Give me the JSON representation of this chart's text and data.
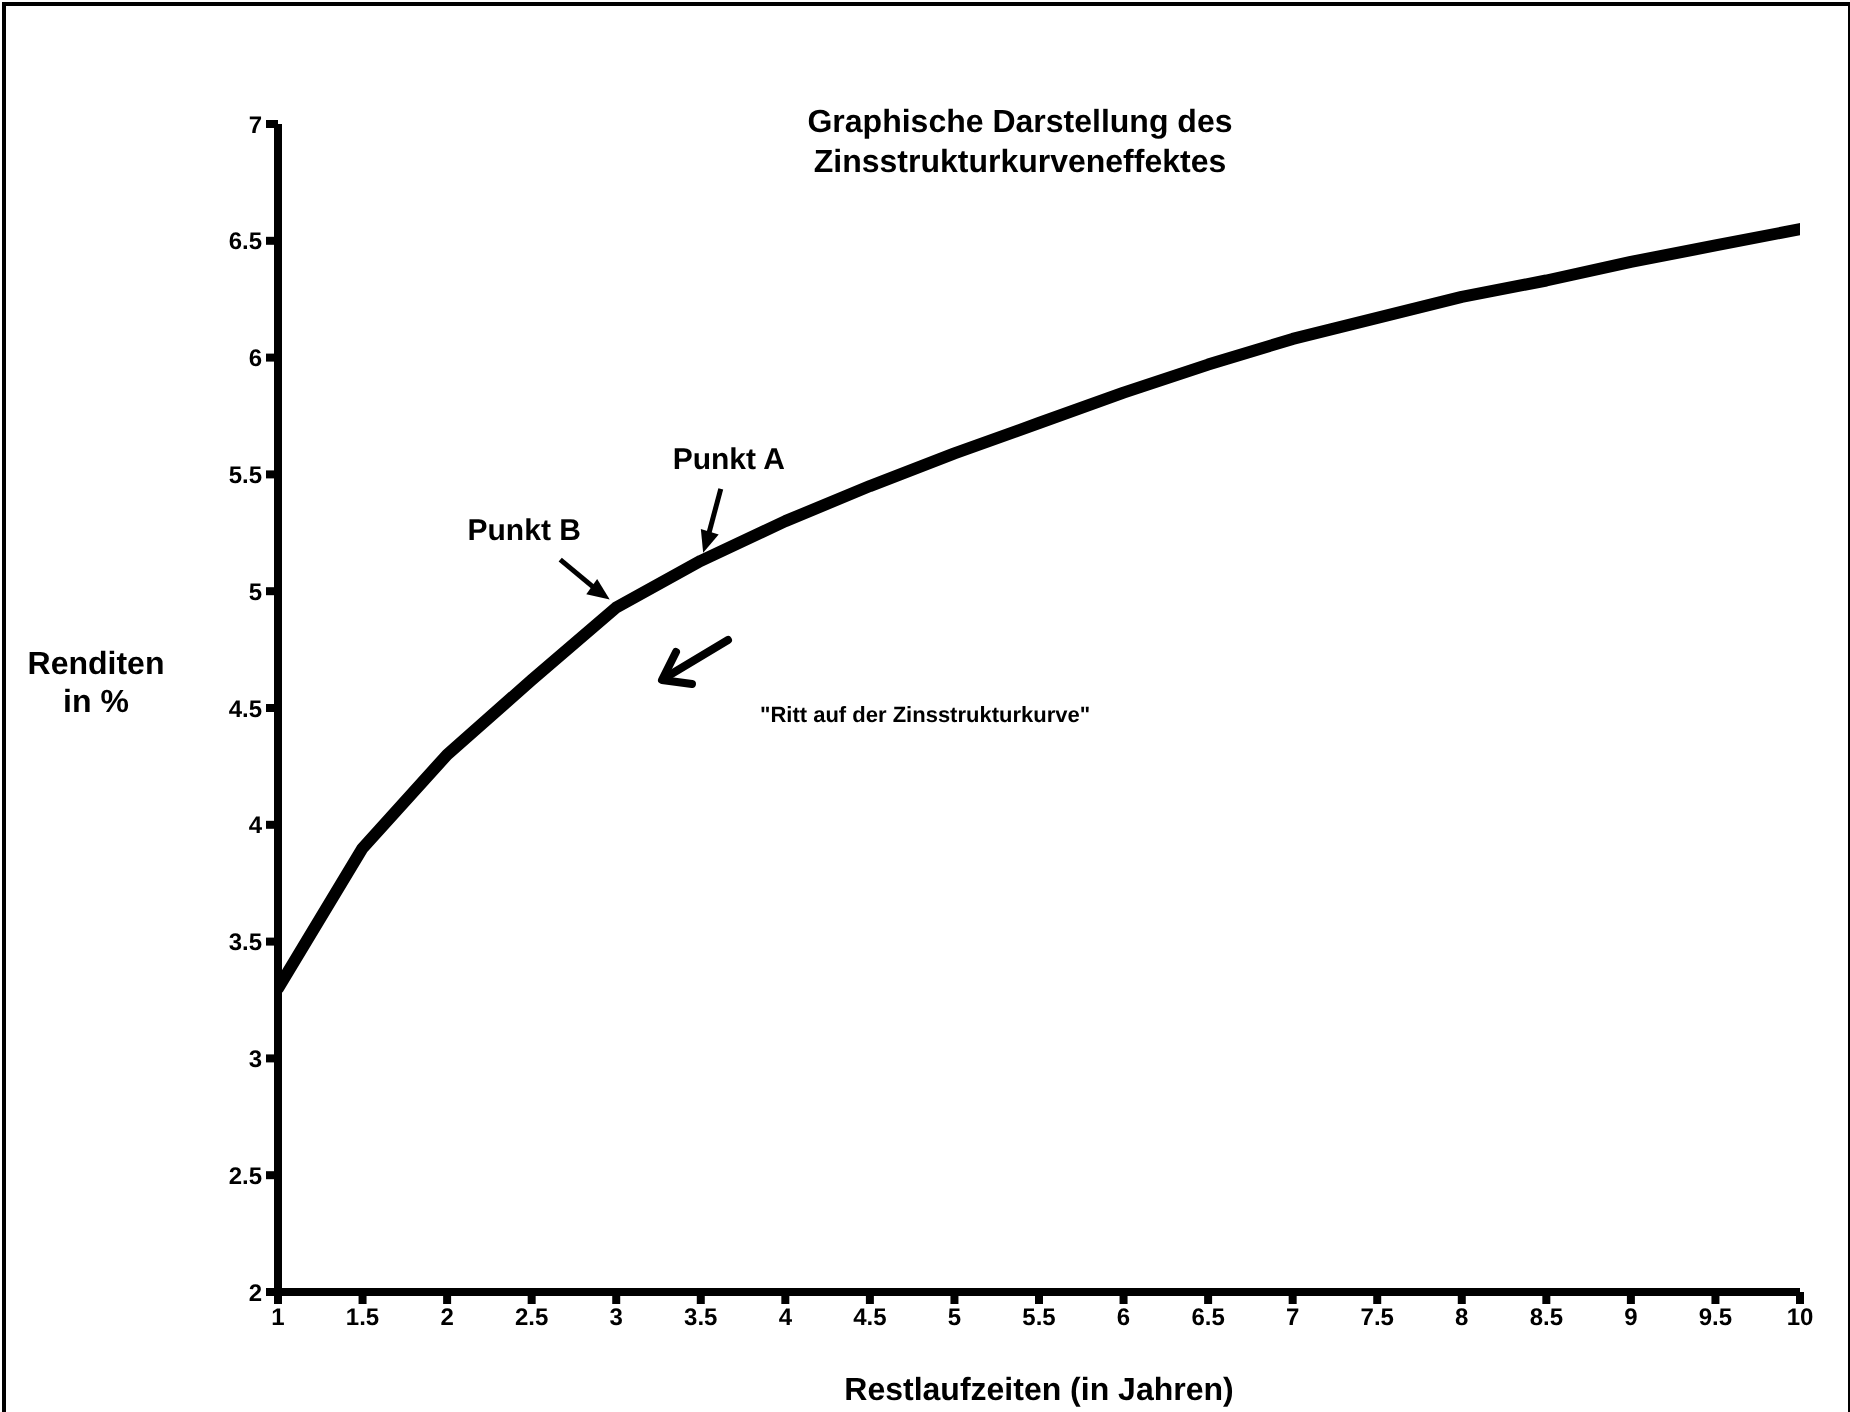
{
  "chart_data": {
    "type": "line",
    "title": "Graphische Darstellung des\nZinsstrukturkurveneffektes",
    "xlabel": "Restlaufzeiten (in Jahren)",
    "ylabel": "Renditen\nin %",
    "x": [
      1,
      1.5,
      2,
      2.5,
      3,
      3.5,
      4,
      4.5,
      5,
      5.5,
      6,
      6.5,
      7,
      7.5,
      8,
      8.5,
      9,
      9.5,
      10
    ],
    "series": [
      {
        "color": "#000000",
        "values": [
          3.3,
          3.9,
          4.3,
          4.62,
          4.93,
          5.13,
          5.3,
          5.45,
          5.59,
          5.72,
          5.85,
          5.97,
          6.08,
          6.17,
          6.26,
          6.33,
          6.41,
          6.48,
          6.55
        ]
      }
    ],
    "xlim": [
      1,
      10
    ],
    "xticks": [
      1,
      1.5,
      2,
      2.5,
      3,
      3.5,
      4,
      4.5,
      5,
      5.5,
      6,
      6.5,
      7,
      7.5,
      8,
      8.5,
      9,
      9.5,
      10
    ],
    "ylim": [
      2,
      7
    ],
    "yticks": [
      2,
      2.5,
      3,
      3.5,
      4,
      4.5,
      5,
      5.5,
      6,
      6.5,
      7
    ],
    "grid": false,
    "marker": "none",
    "line_style": "solid",
    "annotations": [
      {
        "text": "Punkt A",
        "x": 3.5,
        "y": 5.13
      },
      {
        "text": "Punkt B",
        "x": 3,
        "y": 4.93
      },
      "\"Ritt auf der Zinsstrukturkurve\""
    ]
  }
}
